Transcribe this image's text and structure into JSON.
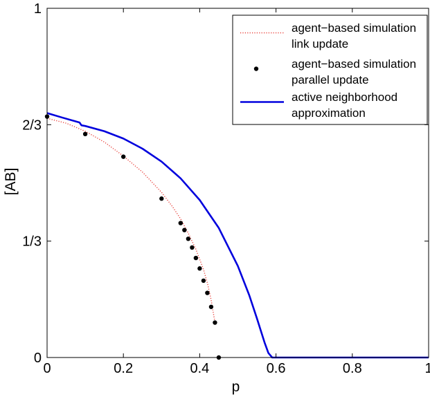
{
  "chart_data": {
    "type": "line",
    "xlabel": "p",
    "ylabel": "[AB]",
    "xlim": [
      0,
      1
    ],
    "ylim": [
      0,
      1
    ],
    "x_ticks": [
      {
        "value": 0,
        "label": "0"
      },
      {
        "value": 0.2,
        "label": "0.2"
      },
      {
        "value": 0.4,
        "label": "0.4"
      },
      {
        "value": 0.6,
        "label": "0.6"
      },
      {
        "value": 0.8,
        "label": "0.8"
      },
      {
        "value": 1,
        "label": "1"
      }
    ],
    "y_ticks": [
      {
        "value": 0,
        "label": "0"
      },
      {
        "value": 0.3333,
        "label": "1/3"
      },
      {
        "value": 0.6667,
        "label": "2/3"
      },
      {
        "value": 1,
        "label": "1"
      }
    ],
    "grid": false,
    "legend_position": "top-right",
    "series": [
      {
        "name_lines": [
          "agent−based simulation",
          "link update"
        ],
        "style": "dotted-line",
        "color": "#e8403a",
        "x": [
          0,
          0.05,
          0.1,
          0.15,
          0.2,
          0.25,
          0.3,
          0.33,
          0.35,
          0.37,
          0.39,
          0.41,
          0.42,
          0.43,
          0.44
        ],
        "y": [
          0.685,
          0.671,
          0.648,
          0.617,
          0.577,
          0.531,
          0.473,
          0.43,
          0.397,
          0.356,
          0.31,
          0.252,
          0.214,
          0.165,
          0.1
        ]
      },
      {
        "name_lines": [
          "agent−based simulation",
          "parallel update"
        ],
        "style": "markers",
        "color": "#000000",
        "x": [
          0,
          0.1,
          0.2,
          0.3,
          0.35,
          0.36,
          0.37,
          0.38,
          0.39,
          0.4,
          0.41,
          0.42,
          0.43,
          0.44,
          0.45
        ],
        "y": [
          0.69,
          0.64,
          0.575,
          0.455,
          0.385,
          0.365,
          0.34,
          0.315,
          0.285,
          0.255,
          0.22,
          0.185,
          0.145,
          0.1,
          0.0
        ]
      },
      {
        "name_lines": [
          "active neighborhood",
          "approximation"
        ],
        "style": "solid-line",
        "color": "#0000dd",
        "x": [
          0,
          0.04,
          0.085,
          0.09,
          0.1,
          0.15,
          0.2,
          0.25,
          0.3,
          0.35,
          0.4,
          0.45,
          0.5,
          0.53,
          0.55,
          0.57,
          0.58,
          0.59,
          0.6,
          0.7,
          0.8,
          0.9,
          1.0
        ],
        "y": [
          0.7,
          0.687,
          0.673,
          0.665,
          0.663,
          0.648,
          0.627,
          0.598,
          0.561,
          0.513,
          0.451,
          0.371,
          0.262,
          0.178,
          0.112,
          0.043,
          0.013,
          0.0,
          0.0,
          0.0,
          0.0,
          0.0,
          0.0
        ]
      }
    ]
  }
}
